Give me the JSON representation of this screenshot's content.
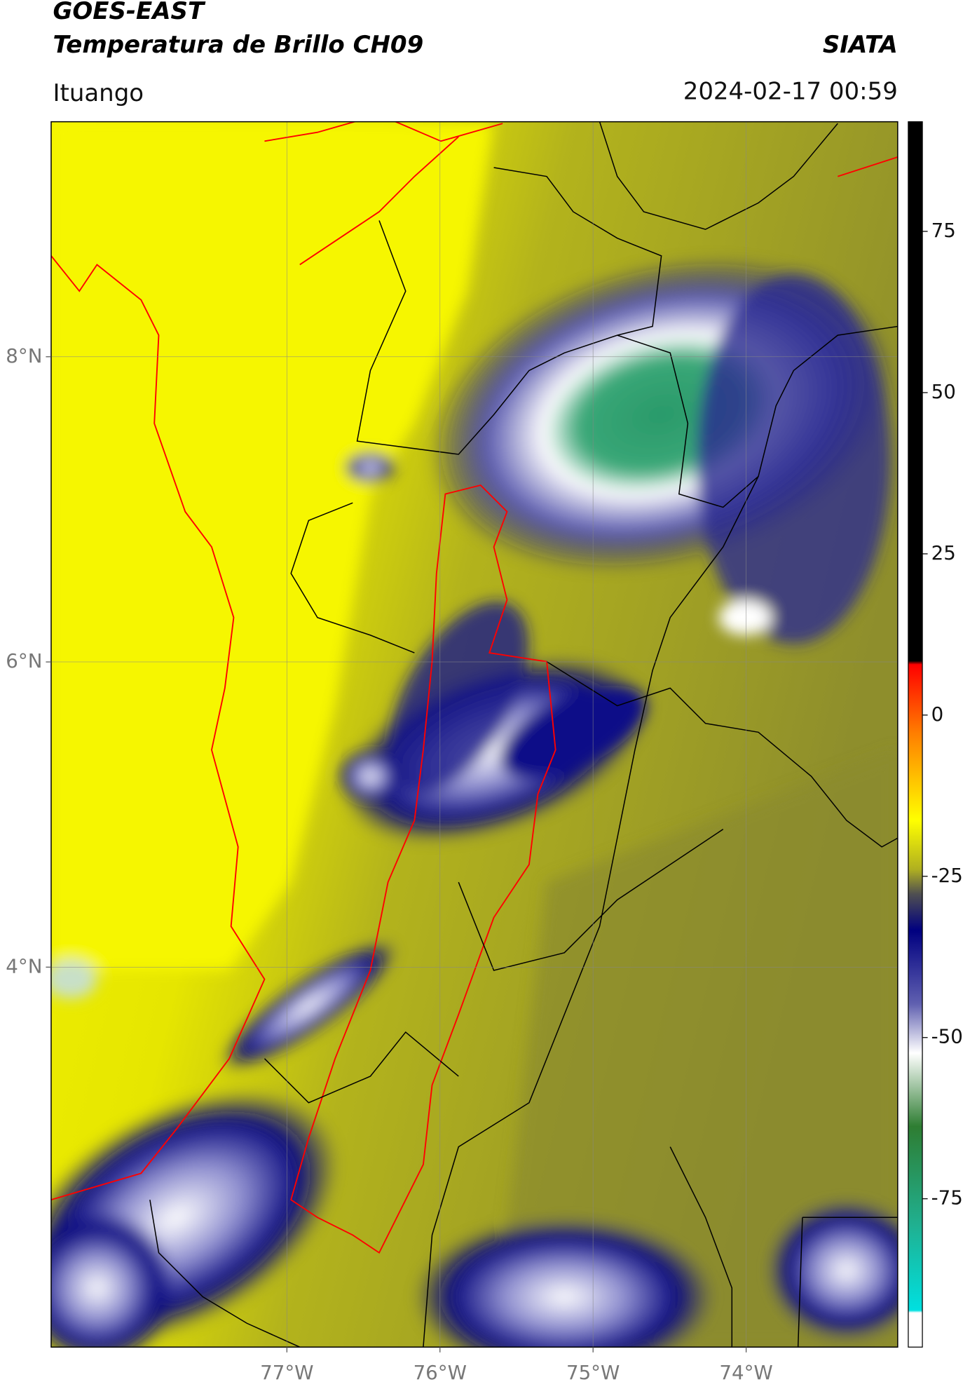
{
  "header": {
    "title": "GOES-EAST",
    "subtitle": "Temperatura de Brillo CH09",
    "source": "SIATA",
    "location": "Ituango",
    "datetime": "2024-02-17 00:59"
  },
  "chart_data": {
    "type": "map",
    "xlim": [
      -78.54,
      -73.01
    ],
    "ylim": [
      1.51,
      9.54
    ],
    "xticks": [
      {
        "value": -77,
        "label": "77°W"
      },
      {
        "value": -76,
        "label": "76°W"
      },
      {
        "value": -75,
        "label": "75°W"
      },
      {
        "value": -74,
        "label": "74°W"
      }
    ],
    "yticks": [
      {
        "value": 4,
        "label": "4°N"
      },
      {
        "value": 6,
        "label": "6°N"
      },
      {
        "value": 8,
        "label": "8°N"
      }
    ],
    "grid": true,
    "colorbar": {
      "lim": [
        -98,
        92
      ],
      "ticks": [
        -75,
        -50,
        -25,
        0,
        25,
        50,
        75
      ]
    }
  }
}
